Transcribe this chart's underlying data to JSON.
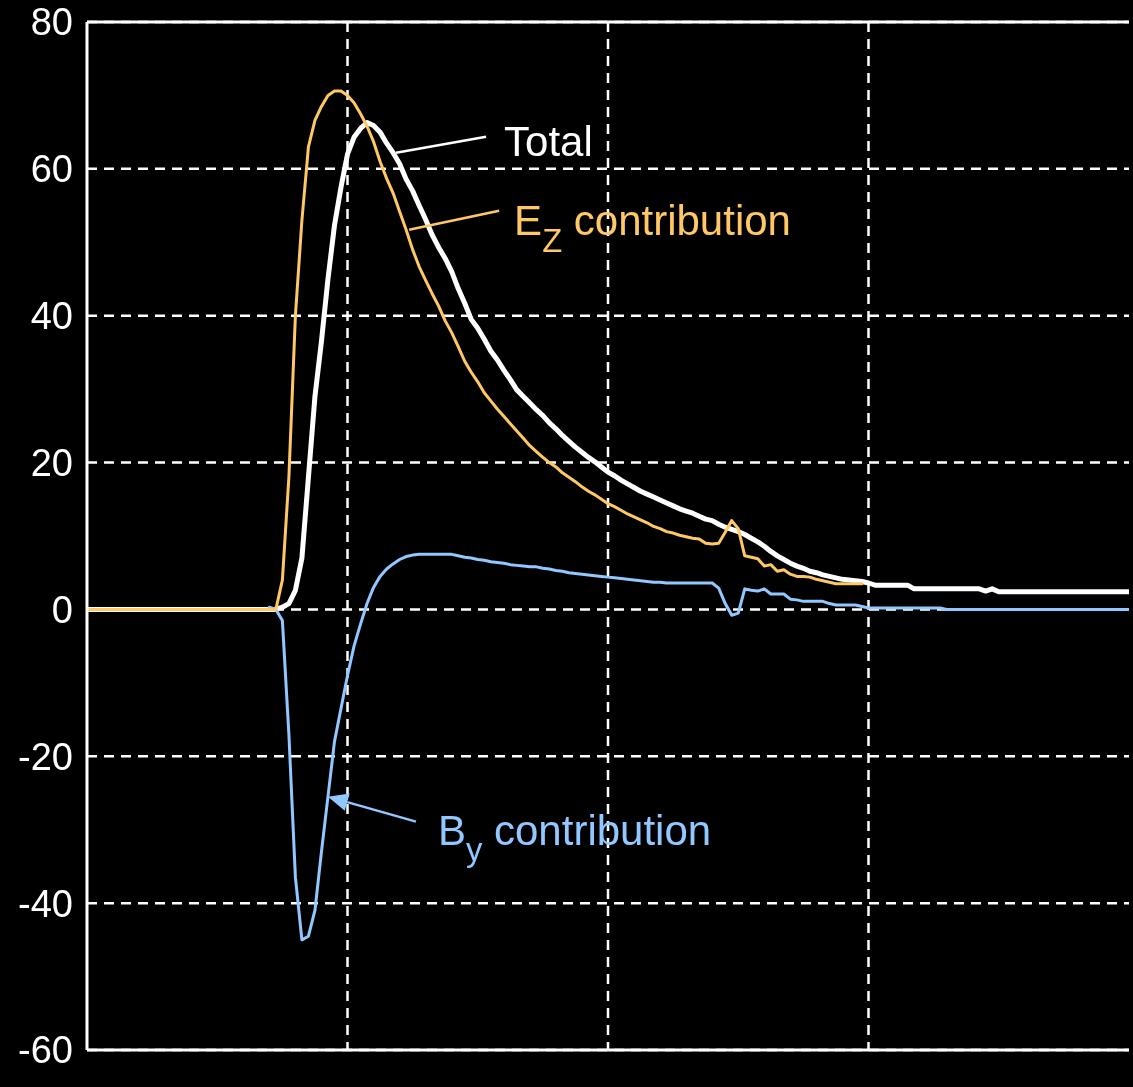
{
  "chart_data": {
    "type": "line",
    "categories": [
      null,
      null,
      null,
      null,
      null,
      null,
      null,
      null,
      null,
      null,
      null,
      null,
      null,
      null,
      null,
      null,
      null,
      null,
      null,
      null,
      null,
      null,
      null,
      null,
      null,
      null,
      null,
      null,
      null,
      null,
      null,
      null,
      null,
      null,
      null,
      null,
      null,
      null,
      null,
      null,
      null,
      null,
      null,
      null,
      null,
      null,
      null,
      null,
      null,
      null,
      null,
      null,
      null,
      null,
      null,
      null,
      null,
      null,
      null,
      null,
      null,
      null,
      null,
      null,
      null,
      null,
      null,
      null,
      null,
      null,
      null,
      null,
      null,
      null,
      null,
      null,
      null,
      null,
      null,
      null,
      null,
      null,
      null,
      null,
      null,
      null,
      null,
      null,
      null,
      null,
      null,
      null,
      null,
      null,
      null,
      null,
      null,
      null,
      null,
      null,
      null,
      null,
      null,
      null,
      null,
      null,
      null,
      null,
      null,
      null,
      null,
      null,
      null,
      null,
      null,
      null,
      null,
      null,
      null,
      null,
      null,
      null,
      null,
      null,
      null,
      null,
      null,
      null,
      null,
      null,
      null,
      null,
      null,
      null,
      null,
      null,
      null,
      null,
      null,
      null,
      null,
      null,
      null,
      null,
      null,
      null,
      null,
      null,
      null,
      null,
      null,
      null,
      null,
      null,
      null,
      null,
      null,
      null,
      null,
      null,
      null
    ],
    "series": [
      {
        "name": "Total",
        "color": "#ffffff",
        "values": [
          0,
          0,
          0,
          0,
          0,
          0,
          0,
          0,
          0,
          0,
          0,
          0,
          0,
          0,
          0,
          0,
          0,
          0,
          0,
          0,
          0,
          0,
          0,
          0,
          0,
          0,
          0,
          0,
          0,
          0,
          0.3,
          0.8,
          2.6,
          7,
          18,
          29,
          36.5,
          45,
          52.3,
          57.5,
          62,
          64.3,
          65.5,
          66.3,
          65.9,
          65,
          63.5,
          62.2,
          60.7,
          58.6,
          57,
          55,
          53.1,
          51,
          49.3,
          47.8,
          46,
          43.7,
          41.7,
          39.5,
          38.3,
          36.8,
          35.2,
          34,
          32.6,
          31.3,
          29.9,
          29,
          28.1,
          27.2,
          26.4,
          25.4,
          24.6,
          23.7,
          22.9,
          22.1,
          21.4,
          20.7,
          20.1,
          19.4,
          18.7,
          18.2,
          17.6,
          17.1,
          16.6,
          16.1,
          15.7,
          15.3,
          14.9,
          14.5,
          14.1,
          13.7,
          13.4,
          13.1,
          12.7,
          12.3,
          12.1,
          11.6,
          11.2,
          10.9,
          10.6,
          10.2,
          9.7,
          9.2,
          8.6,
          7.9,
          7.3,
          6.8,
          6.3,
          5.9,
          5.6,
          5.2,
          5,
          4.7,
          4.5,
          4.3,
          4.1,
          4,
          3.9,
          3.8,
          3.6,
          3.3,
          3.3,
          3.3,
          3.3,
          3.3,
          3.3,
          2.8,
          2.8,
          2.8,
          2.8,
          2.8,
          2.8,
          2.8,
          2.8,
          2.8,
          2.8,
          2.8,
          2.5,
          2.8,
          2.4,
          2.4,
          2.4,
          2.4,
          2.4,
          2.4,
          2.4,
          2.4,
          2.4,
          2.4,
          2.4,
          2.4,
          2.4,
          2.4,
          2.4,
          2.4,
          2.4,
          2.4,
          2.4,
          2.4,
          2.4
        ]
      },
      {
        "name": "B$_{y}$ contribution",
        "color": "#90c8ff",
        "values": [
          null,
          null,
          null,
          null,
          null,
          null,
          null,
          null,
          null,
          null,
          null,
          null,
          null,
          null,
          null,
          null,
          null,
          null,
          null,
          null,
          null,
          null,
          null,
          null,
          null,
          null,
          null,
          null,
          0.3,
          0,
          -1.5,
          -17,
          -36.5,
          -45,
          -44.5,
          -41,
          -33,
          -25.5,
          -18,
          -13.5,
          -9,
          -5,
          -2,
          0.8,
          3,
          4.5,
          5.5,
          6.2,
          6.8,
          7.2,
          7.4,
          7.5,
          7.5,
          7.5,
          7.5,
          7.5,
          7.5,
          7.3,
          7.1,
          7,
          6.8,
          6.7,
          6.5,
          6.4,
          6.3,
          6.1,
          6,
          5.9,
          5.8,
          5.8,
          5.6,
          5.5,
          5.3,
          5.2,
          5,
          4.9,
          4.8,
          4.7,
          4.6,
          4.5,
          4.4,
          4.3,
          4.2,
          4.1,
          4,
          3.9,
          3.8,
          3.7,
          3.7,
          3.6,
          3.6,
          3.6,
          3.6,
          3.6,
          3.6,
          3.6,
          3.6,
          2.9,
          0.8,
          -0.8,
          -0.5,
          2.8,
          2.6,
          2.5,
          2.8,
          2.1,
          2.1,
          2.1,
          1.4,
          1.3,
          1.1,
          1.1,
          1.1,
          1.1,
          0.8,
          0.6,
          0.6,
          0.6,
          0.6,
          0.4,
          0.2,
          0.2,
          0.2,
          0.2,
          0.2,
          0.2,
          0.2,
          0.2,
          0.2,
          0.2,
          0.2,
          0.2,
          0,
          0,
          0,
          0,
          0,
          0,
          0,
          0,
          0,
          0,
          0,
          0,
          0,
          0,
          0,
          0,
          0,
          0,
          0,
          0,
          0,
          0,
          0,
          0,
          0,
          0,
          0,
          0,
          0
        ]
      },
      {
        "name": "E$_{Z}$ contribution",
        "color": "#ffc864",
        "values": [
          0,
          0,
          0,
          0,
          0,
          0,
          0,
          0,
          0,
          0,
          0,
          0,
          0,
          0,
          0,
          0,
          0,
          0,
          0,
          0,
          0,
          0,
          0,
          0,
          0,
          0,
          0,
          0,
          0,
          0,
          4,
          18,
          40,
          53,
          63,
          66.6,
          68.5,
          70,
          70.6,
          70.6,
          70,
          69,
          67.5,
          65.8,
          63.7,
          61,
          58.7,
          56.7,
          54.2,
          51.7,
          49,
          46.7,
          44.8,
          43,
          41.3,
          39.3,
          37.7,
          35.8,
          33.8,
          32.3,
          31,
          29.5,
          28.4,
          27.3,
          26.3,
          25.3,
          24.3,
          23.3,
          22.3,
          21.5,
          20.7,
          20,
          19.4,
          18.6,
          18,
          17.4,
          16.7,
          16.1,
          15.6,
          15,
          14.4,
          14,
          13.5,
          13,
          12.6,
          12.2,
          11.8,
          11.3,
          11,
          10.6,
          10.4,
          10.1,
          9.9,
          9.7,
          9.6,
          9,
          8.9,
          9,
          10.5,
          12.1,
          11,
          7.3,
          7.1,
          6.9,
          5.9,
          6.1,
          5.2,
          5.4,
          4.8,
          4.5,
          4.5,
          4.4,
          4.1,
          3.9,
          3.7,
          3.5,
          3.5,
          3.5,
          3.5,
          3.5,
          null,
          null,
          null,
          null,
          null,
          null,
          null,
          null,
          null,
          null,
          null,
          null,
          null,
          null,
          null,
          null,
          null,
          null,
          null,
          null,
          null,
          null,
          null,
          null,
          null,
          null,
          null,
          null,
          null,
          null,
          null,
          null,
          null,
          null,
          null,
          null,
          null,
          null,
          null,
          null,
          null
        ]
      }
    ],
    "ylim": [
      -60,
      80
    ],
    "yticks": [
      -60,
      -40,
      -20,
      0,
      20,
      40,
      60,
      80
    ],
    "grid": true,
    "legend": "center"
  }
}
